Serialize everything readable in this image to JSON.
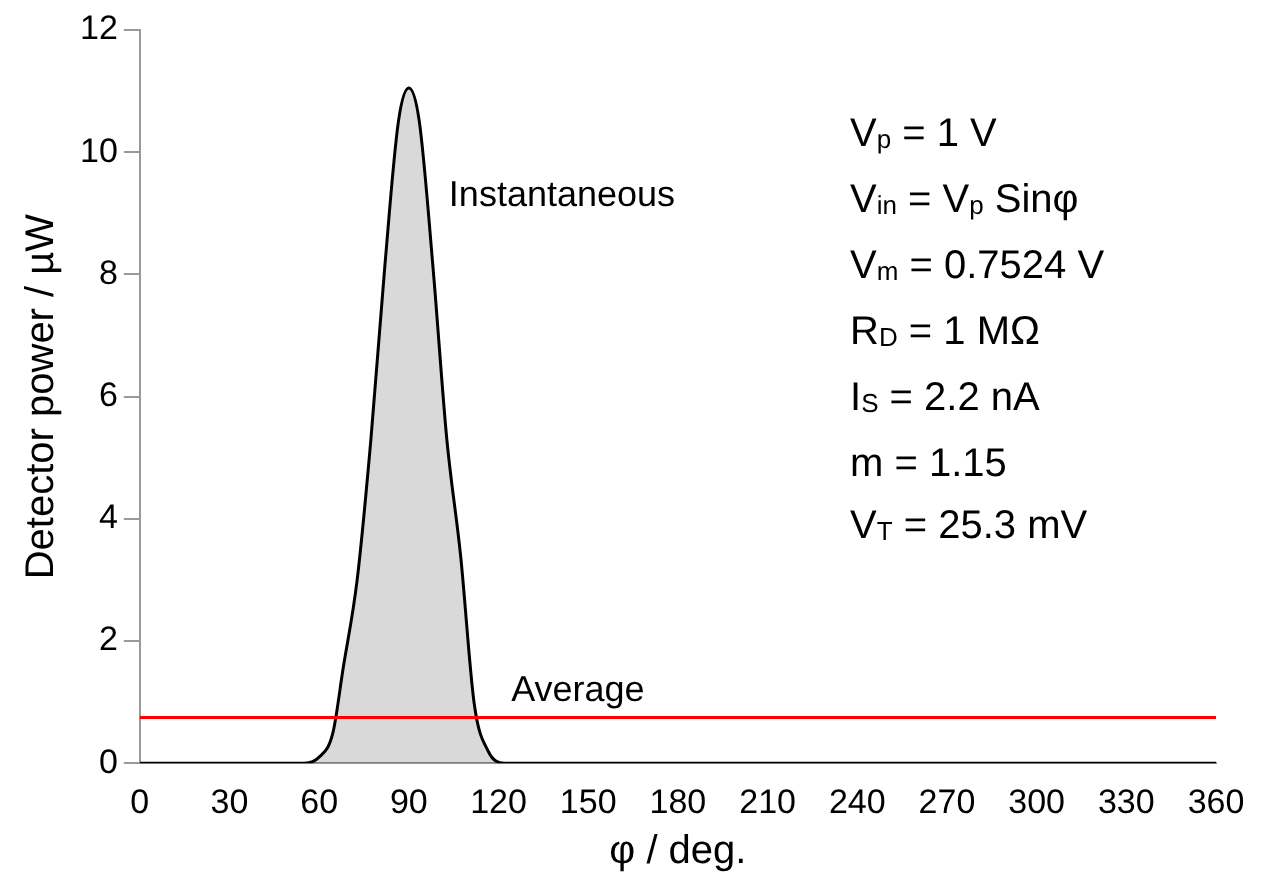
{
  "chart_data": {
    "type": "area",
    "xlabel": "φ / deg.",
    "ylabel": "Detector power / µW",
    "xlim": [
      0,
      360
    ],
    "xticks": [
      0,
      30,
      60,
      90,
      120,
      150,
      180,
      210,
      240,
      270,
      300,
      330,
      360
    ],
    "ylim": [
      0,
      12
    ],
    "yticks": [
      0,
      2,
      4,
      6,
      8,
      10,
      12
    ],
    "grid": false,
    "legend": false,
    "series": [
      {
        "name": "Instantaneous",
        "color": "#000000",
        "x": [
          0,
          55,
          60,
          64.6,
          68,
          72.7,
          77.3,
          81.9,
          86.5,
          90,
          93.5,
          98.1,
          102.7,
          107.3,
          111.9,
          116.5,
          122,
          360
        ],
        "values": [
          0,
          0,
          0.1,
          0.5,
          1.55,
          3.0,
          5.3,
          8.1,
          10.5,
          11.05,
          10.5,
          8.1,
          5.3,
          3.4,
          0.96,
          0.2,
          0,
          0
        ]
      }
    ],
    "ref_lines": [
      {
        "axis": "y",
        "value": 0.75,
        "label": "Average",
        "color": "#ff0000"
      }
    ],
    "annotations": [
      "V$_{p}$ = 1 V",
      "V$_{in}$ = V$_{p}$ Sinφ",
      "V$_{m}$ = 0.7524 V",
      "R$_{D}$ = 1 MΩ",
      "I$_{S}$ = 2.2 nA",
      "m = 1.15",
      "V$_{T}$ = 25.3 mV"
    ]
  }
}
